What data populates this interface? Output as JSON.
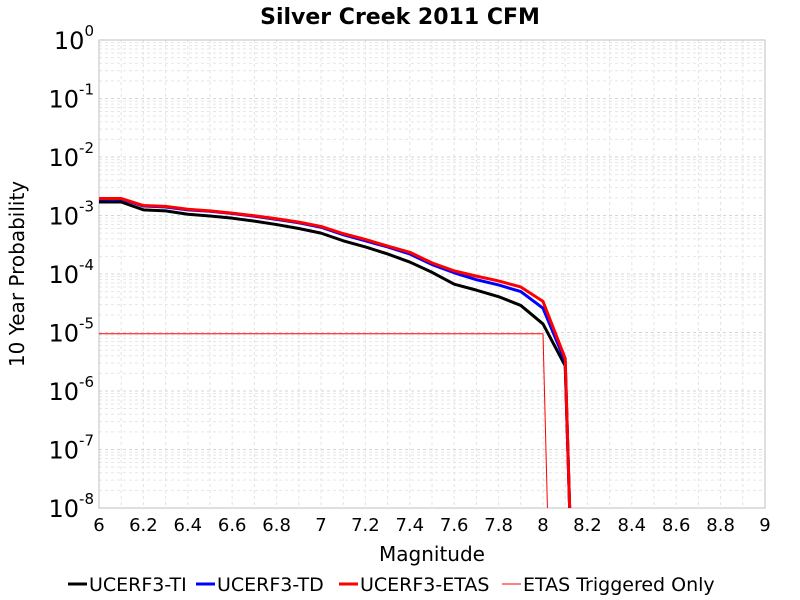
{
  "chart_data": {
    "type": "line",
    "title": "Silver Creek 2011 CFM",
    "xlabel": "Magnitude",
    "ylabel": "10 Year Probability",
    "xlim": [
      6,
      9
    ],
    "ylim": [
      1e-08,
      1
    ],
    "yscale": "log",
    "grid": true,
    "legend_position": "bottom",
    "x_ticks": [
      "6",
      "6.2",
      "6.4",
      "6.6",
      "6.8",
      "7",
      "7.2",
      "7.4",
      "7.6",
      "7.8",
      "8",
      "8.2",
      "8.4",
      "8.6",
      "8.8",
      "9"
    ],
    "y_ticks": [
      {
        "base": "10",
        "exp": "0"
      },
      {
        "base": "10",
        "exp": "-1"
      },
      {
        "base": "10",
        "exp": "-2"
      },
      {
        "base": "10",
        "exp": "-3"
      },
      {
        "base": "10",
        "exp": "-4"
      },
      {
        "base": "10",
        "exp": "-5"
      },
      {
        "base": "10",
        "exp": "-6"
      },
      {
        "base": "10",
        "exp": "-7"
      },
      {
        "base": "10",
        "exp": "-8"
      }
    ],
    "series": [
      {
        "name": "UCERF3-TI",
        "color": "#000000",
        "width": 3,
        "x": [
          6.0,
          6.1,
          6.2,
          6.3,
          6.4,
          6.5,
          6.6,
          6.7,
          6.8,
          6.9,
          7.0,
          7.1,
          7.2,
          7.3,
          7.4,
          7.5,
          7.6,
          7.7,
          7.8,
          7.9,
          8.0,
          8.1,
          8.12
        ],
        "y": [
          0.0017,
          0.0017,
          0.00125,
          0.0012,
          0.00105,
          0.00098,
          0.0009,
          0.0008,
          0.0007,
          0.0006,
          0.0005,
          0.00037,
          0.00029,
          0.00022,
          0.00016,
          0.000107,
          6.7e-05,
          5.3e-05,
          4.1e-05,
          2.9e-05,
          1.4e-05,
          2.7e-06,
          1e-08
        ]
      },
      {
        "name": "UCERF3-TD",
        "color": "#0000ff",
        "width": 3,
        "x": [
          6.0,
          6.1,
          6.2,
          6.3,
          6.4,
          6.5,
          6.6,
          6.7,
          6.8,
          6.9,
          7.0,
          7.1,
          7.2,
          7.3,
          7.4,
          7.5,
          7.6,
          7.7,
          7.8,
          7.9,
          8.0,
          8.1,
          8.12
        ],
        "y": [
          0.0019,
          0.0019,
          0.00145,
          0.0014,
          0.00125,
          0.00118,
          0.00108,
          0.00097,
          0.00086,
          0.00075,
          0.00063,
          0.00047,
          0.00037,
          0.00029,
          0.00022,
          0.000145,
          0.000105,
          8e-05,
          6.5e-05,
          5e-05,
          2.6e-05,
          3.2e-06,
          1e-08
        ]
      },
      {
        "name": "UCERF3-ETAS",
        "color": "#ff0000",
        "width": 3,
        "x": [
          6.0,
          6.1,
          6.2,
          6.3,
          6.4,
          6.5,
          6.6,
          6.7,
          6.8,
          6.9,
          7.0,
          7.1,
          7.2,
          7.3,
          7.4,
          7.5,
          7.6,
          7.7,
          7.8,
          7.9,
          8.0,
          8.1,
          8.12
        ],
        "y": [
          0.00195,
          0.00195,
          0.00148,
          0.00143,
          0.00128,
          0.0012,
          0.0011,
          0.00099,
          0.00088,
          0.00077,
          0.00065,
          0.00049,
          0.00039,
          0.0003,
          0.000235,
          0.000155,
          0.000113,
          9.2e-05,
          7.6e-05,
          6e-05,
          3.4e-05,
          3.6e-06,
          1e-08
        ]
      },
      {
        "name": "ETAS Triggered Only",
        "color": "#ff0000",
        "width": 1,
        "x": [
          6.0,
          8.0,
          8.02
        ],
        "y": [
          9.5e-06,
          9.5e-06,
          1e-08
        ]
      }
    ]
  }
}
